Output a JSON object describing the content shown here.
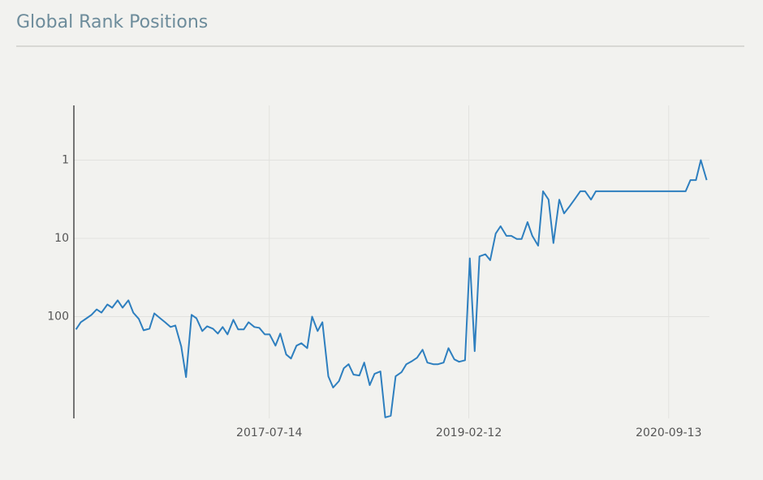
{
  "chart_data": {
    "type": "line",
    "title": "Global Rank Positions",
    "x": [
      "2016-01-01",
      "2016-01-15",
      "2016-02-01",
      "2016-02-15",
      "2016-03-01",
      "2016-03-15",
      "2016-04-01",
      "2016-04-15",
      "2016-05-01",
      "2016-05-15",
      "2016-06-01",
      "2016-06-15",
      "2016-07-01",
      "2016-07-15",
      "2016-08-01",
      "2016-08-15",
      "2016-09-01",
      "2016-09-15",
      "2016-10-01",
      "2016-10-15",
      "2016-11-01",
      "2016-11-15",
      "2016-12-01",
      "2016-12-15",
      "2017-01-01",
      "2017-01-15",
      "2017-02-01",
      "2017-02-15",
      "2017-03-01",
      "2017-03-15",
      "2017-04-01",
      "2017-04-15",
      "2017-05-01",
      "2017-05-15",
      "2017-06-01",
      "2017-06-15",
      "2017-07-01",
      "2017-07-15",
      "2017-08-01",
      "2017-08-15",
      "2017-09-01",
      "2017-09-15",
      "2017-10-01",
      "2017-10-15",
      "2017-11-01",
      "2017-11-15",
      "2017-12-01",
      "2017-12-15",
      "2018-01-01",
      "2018-01-15",
      "2018-02-01",
      "2018-02-15",
      "2018-03-01",
      "2018-03-15",
      "2018-04-01",
      "2018-04-15",
      "2018-05-01",
      "2018-05-15",
      "2018-06-01",
      "2018-06-15",
      "2018-07-01",
      "2018-07-15",
      "2018-08-01",
      "2018-08-15",
      "2018-09-01",
      "2018-09-15",
      "2018-10-01",
      "2018-10-15",
      "2018-11-01",
      "2018-11-15",
      "2018-12-01",
      "2018-12-15",
      "2019-01-01",
      "2019-01-15",
      "2019-02-01",
      "2019-02-15",
      "2019-03-01",
      "2019-03-15",
      "2019-04-01",
      "2019-04-15",
      "2019-05-01",
      "2019-05-15",
      "2019-06-01",
      "2019-06-15",
      "2019-07-01",
      "2019-07-15",
      "2019-08-01",
      "2019-08-15",
      "2019-09-01",
      "2019-09-15",
      "2019-10-01",
      "2019-10-15",
      "2019-11-01",
      "2019-11-15",
      "2019-12-01",
      "2019-12-15",
      "2020-01-01",
      "2020-01-15",
      "2020-02-01",
      "2020-02-15",
      "2020-03-01",
      "2020-03-15",
      "2020-04-01",
      "2020-04-15",
      "2020-05-01",
      "2020-05-15",
      "2020-06-01",
      "2020-06-15",
      "2020-07-01",
      "2020-07-15",
      "2020-08-01",
      "2020-08-15",
      "2020-09-01",
      "2020-09-15",
      "2020-10-01",
      "2020-10-15",
      "2020-11-01",
      "2020-11-15",
      "2020-12-01",
      "2020-12-15",
      "2021-01-01"
    ],
    "values": [
      146,
      118,
      105,
      95,
      81,
      89,
      70,
      77,
      62,
      77,
      62,
      89,
      107,
      150,
      143,
      91,
      105,
      118,
      136,
      130,
      241,
      593,
      95,
      105,
      153,
      133,
      143,
      165,
      136,
      169,
      110,
      146,
      146,
      118,
      136,
      139,
      169,
      169,
      235,
      165,
      305,
      344,
      235,
      219,
      253,
      100,
      153,
      118,
      580,
      807,
      668,
      457,
      406,
      552,
      566,
      387,
      752,
      540,
      502,
      1945,
      1854,
      580,
      514,
      406,
      369,
      336,
      265,
      387,
      406,
      406,
      387,
      253,
      352,
      378,
      361,
      18,
      277,
      17,
      16,
      19,
      8.7,
      7,
      9.3,
      9.3,
      10.2,
      10.2,
      6.2,
      9.3,
      12.4,
      2.5,
      3.2,
      11.5,
      3.2,
      4.8,
      3.9,
      3.2,
      2.5,
      2.5,
      3.2,
      2.5,
      2.5,
      2.5,
      2.5,
      2.5,
      2.5,
      2.5,
      2.5,
      2.5,
      2.5,
      2.5,
      2.5,
      2.5,
      2.5,
      2.5,
      2.5,
      2.5,
      2.5,
      1.8,
      1.8,
      1,
      1.8
    ],
    "color": "#2e7fbf",
    "xlim": [
      "2015-12-26",
      "2021-01-09"
    ],
    "xticks": [
      "2017-07-14",
      "2019-02-12",
      "2020-09-13"
    ],
    "ylim": [
      0.2,
      2000
    ],
    "yticks": [
      1,
      10,
      100
    ],
    "log_y": true,
    "y_reversed": true,
    "grid": true
  }
}
